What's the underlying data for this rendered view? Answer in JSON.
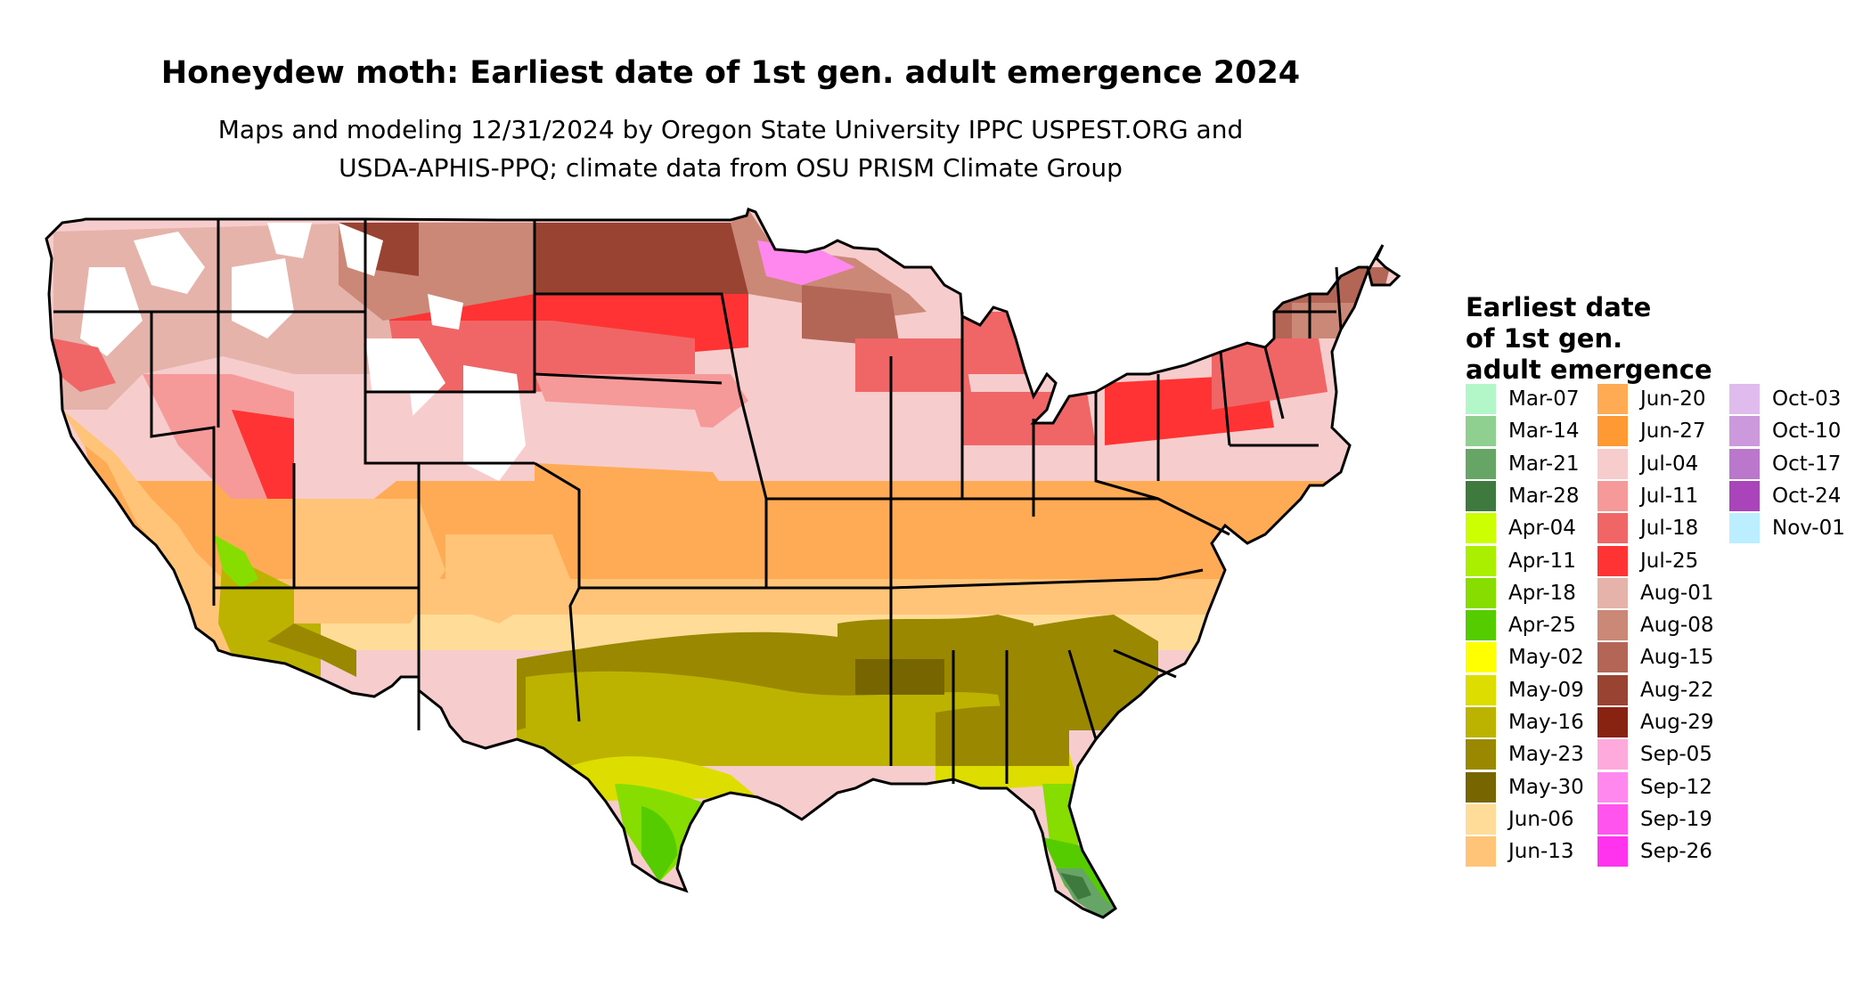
{
  "title": "Honeydew moth: Earliest date of 1st gen. adult emergence 2024",
  "subtitle": {
    "line1": "Maps and modeling 12/31/2024 by Oregon State University IPPC USPEST.ORG and",
    "line2": "USDA-APHIS-PPQ; climate data from OSU PRISM Climate Group"
  },
  "legend": {
    "title_lines": [
      "Earliest date",
      "of 1st gen.",
      "adult emergence"
    ],
    "items": [
      {
        "label": "Mar-07",
        "color": "#b3f7c9"
      },
      {
        "label": "Mar-14",
        "color": "#8fcf8f"
      },
      {
        "label": "Mar-21",
        "color": "#66a566"
      },
      {
        "label": "Mar-28",
        "color": "#3e7a3e"
      },
      {
        "label": "Apr-04",
        "color": "#ccff00"
      },
      {
        "label": "Apr-11",
        "color": "#aaee00"
      },
      {
        "label": "Apr-18",
        "color": "#88dd00"
      },
      {
        "label": "Apr-25",
        "color": "#55cc00"
      },
      {
        "label": "May-02",
        "color": "#ffff00"
      },
      {
        "label": "May-09",
        "color": "#dddd00"
      },
      {
        "label": "May-16",
        "color": "#bbb300"
      },
      {
        "label": "May-23",
        "color": "#998800"
      },
      {
        "label": "May-30",
        "color": "#776600"
      },
      {
        "label": "Jun-06",
        "color": "#ffdd99"
      },
      {
        "label": "Jun-13",
        "color": "#ffc477"
      },
      {
        "label": "Jun-20",
        "color": "#ffaa55"
      },
      {
        "label": "Jun-27",
        "color": "#ff9933"
      },
      {
        "label": "Jul-04",
        "color": "#f7cccc"
      },
      {
        "label": "Jul-11",
        "color": "#f59999"
      },
      {
        "label": "Jul-18",
        "color": "#f06666"
      },
      {
        "label": "Jul-25",
        "color": "#ff3333"
      },
      {
        "label": "Aug-01",
        "color": "#e6b3aa"
      },
      {
        "label": "Aug-08",
        "color": "#cc8877"
      },
      {
        "label": "Aug-15",
        "color": "#b36655"
      },
      {
        "label": "Aug-22",
        "color": "#994433"
      },
      {
        "label": "Aug-29",
        "color": "#882211"
      },
      {
        "label": "Sep-05",
        "color": "#ffaadd"
      },
      {
        "label": "Sep-12",
        "color": "#ff88ee"
      },
      {
        "label": "Sep-19",
        "color": "#ff55ee"
      },
      {
        "label": "Sep-26",
        "color": "#ff33ee"
      },
      {
        "label": "Oct-03",
        "color": "#e0bbee"
      },
      {
        "label": "Oct-10",
        "color": "#cc99dd"
      },
      {
        "label": "Oct-17",
        "color": "#bb77cc"
      },
      {
        "label": "Oct-24",
        "color": "#aa44bb"
      },
      {
        "label": "Nov-01",
        "color": "#bbeeff"
      }
    ]
  }
}
